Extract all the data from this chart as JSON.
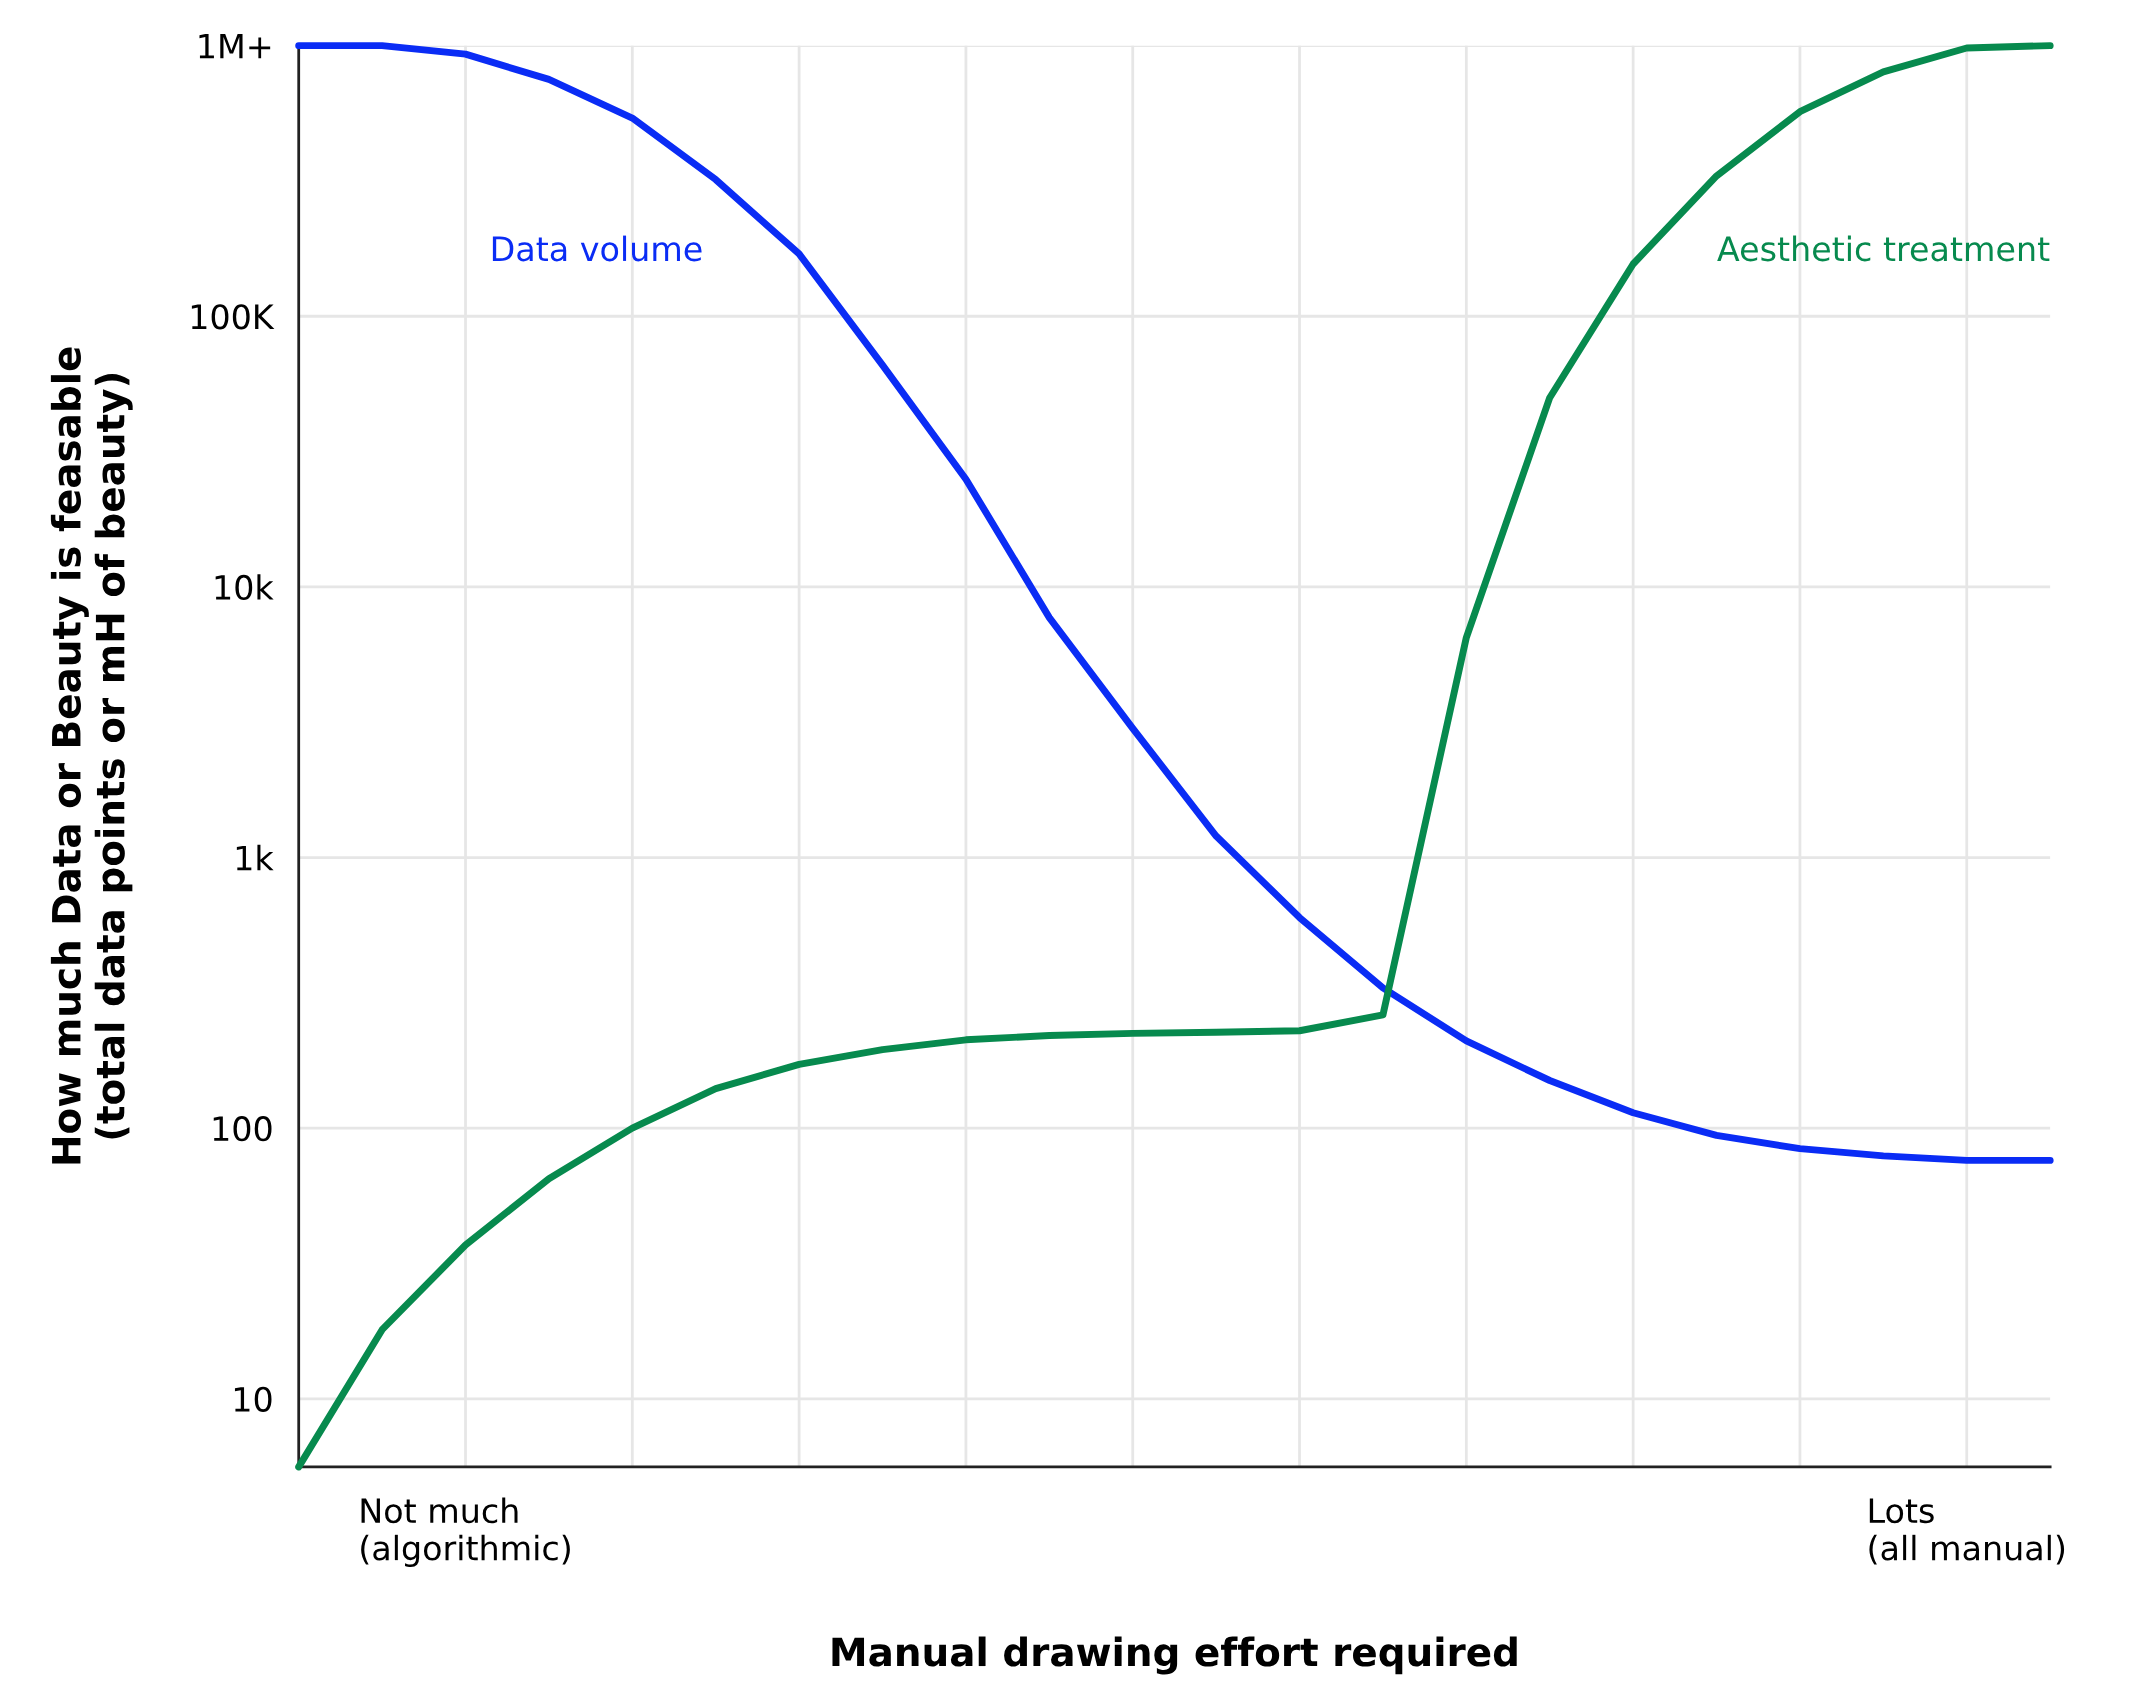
{
  "chart_data": {
    "type": "line",
    "xlabel": "Manual drawing effort required",
    "ylabel": "How much Data or Beauty is feasable\n(total data points or mH of beauty)",
    "categories": [
      null,
      null,
      "Not much\n(algorithmic)",
      null,
      null,
      null,
      null,
      null,
      null,
      null,
      null,
      null,
      null,
      null,
      null,
      null,
      null,
      null,
      null,
      null,
      "Lots\n(all manual)",
      null
    ],
    "series": [
      {
        "name": "Data volume",
        "color": "#0a2cf5",
        "values": [
          1000000,
          1000000,
          930000,
          750000,
          540000,
          320000,
          170000,
          66000,
          25000,
          7700,
          3000,
          1200,
          600,
          330,
          210,
          150,
          114,
          94,
          84,
          79,
          76,
          76
        ]
      },
      {
        "name": "Aesthetic treatment",
        "color": "#078a4e",
        "values": [
          5.6,
          18,
          37,
          65,
          100,
          140,
          172,
          195,
          212,
          220,
          224,
          226,
          229,
          262,
          6500,
          50000,
          156000,
          330000,
          570000,
          800000,
          980000,
          1000000
        ]
      }
    ],
    "log": "y",
    "ylim": [
      5.6,
      1000000
    ],
    "yticks": [
      10,
      100,
      {
        "value": 1000,
        "label": "1k"
      },
      {
        "value": 10000,
        "label": "10k"
      },
      {
        "value": 100000,
        "label": "100K"
      },
      {
        "value": 1000000,
        "label": "1M+"
      }
    ],
    "grid": true,
    "line_style": "solid"
  }
}
